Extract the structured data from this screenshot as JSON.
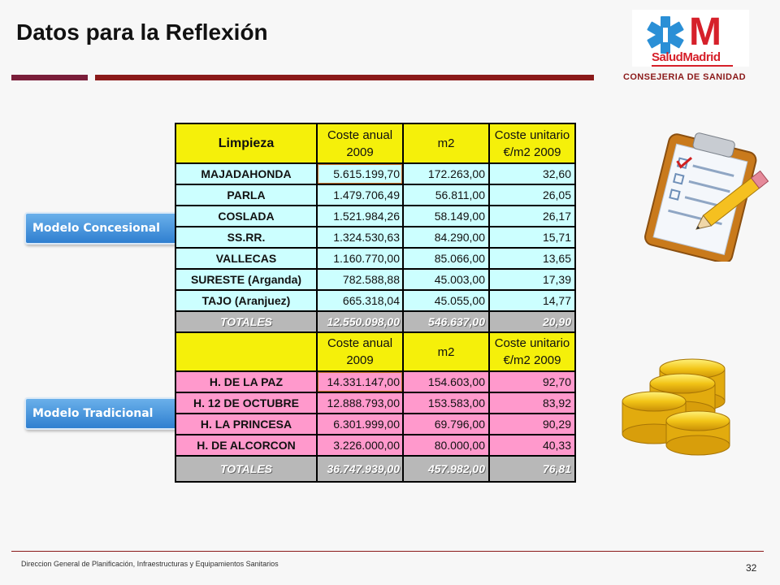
{
  "slide": {
    "title": "Datos para la Reflexión",
    "org": "CONSEJERIA DE SANIDAD",
    "logo_text": "SaludMadrid",
    "logo_letter": "M",
    "footer": "Direccion General de Planificación, Infraestructuras y Equipamientos Sanitarios",
    "page_number": "32"
  },
  "tags": {
    "concesional": "Modelo Concesional",
    "tradicional": "Modelo Tradicional"
  },
  "table": {
    "header1": {
      "c1": "Limpieza",
      "c2a": "Coste anual",
      "c2b": "2009",
      "c3": "m2",
      "c4a": "Coste unitario",
      "c4b": "€/m2 2009"
    },
    "header2": {
      "c1": "",
      "c2a": "Coste anual",
      "c2b": "2009",
      "c3": "m2",
      "c4a": "Coste unitario",
      "c4b": "€/m2 2009"
    },
    "concesional_rows": [
      {
        "name": "MAJADAHONDA",
        "coste": "5.615.199,70",
        "m2": "172.263,00",
        "unit": "32,60"
      },
      {
        "name": "PARLA",
        "coste": "1.479.706,49",
        "m2": "56.811,00",
        "unit": "26,05"
      },
      {
        "name": "COSLADA",
        "coste": "1.521.984,26",
        "m2": "58.149,00",
        "unit": "26,17"
      },
      {
        "name": "SS.RR.",
        "coste": "1.324.530,63",
        "m2": "84.290,00",
        "unit": "15,71"
      },
      {
        "name": "VALLECAS",
        "coste": "1.160.770,00",
        "m2": "85.066,00",
        "unit": "13,65"
      },
      {
        "name": "SURESTE (Arganda)",
        "coste": "782.588,88",
        "m2": "45.003,00",
        "unit": "17,39"
      },
      {
        "name": "TAJO (Aranjuez)",
        "coste": "665.318,04",
        "m2": "45.055,00",
        "unit": "14,77"
      }
    ],
    "total1": {
      "name": "TOTALES",
      "coste": "12.550.098,00",
      "m2": "546.637,00",
      "unit": "20,90"
    },
    "tradicional_rows": [
      {
        "name": "H. DE LA PAZ",
        "coste": "14.331.147,00",
        "m2": "154.603,00",
        "unit": "92,70"
      },
      {
        "name": "H. 12 DE OCTUBRE",
        "coste": "12.888.793,00",
        "m2": "153.583,00",
        "unit": "83,92"
      },
      {
        "name": "H. LA PRINCESA",
        "coste": "6.301.999,00",
        "m2": "69.796,00",
        "unit": "90,29"
      },
      {
        "name": "H. DE ALCORCON",
        "coste": "3.226.000,00",
        "m2": "80.000,00",
        "unit": "40,33"
      }
    ],
    "total2": {
      "name": "TOTALES",
      "coste": "36.747.939,00",
      "m2": "457.982,00",
      "unit": "76,81"
    }
  },
  "icons": {
    "clipboard": "clipboard-checklist-icon",
    "coins": "gold-coins-icon"
  },
  "colors": {
    "header_yellow": "#f5f00a",
    "cyan_rows": "#ccffff",
    "pink_rows": "#ff99cc",
    "totals_gray": "#b8b8b8",
    "accent_maroon": "#8b1a1a",
    "tag_blue": "#2f7fd0"
  }
}
